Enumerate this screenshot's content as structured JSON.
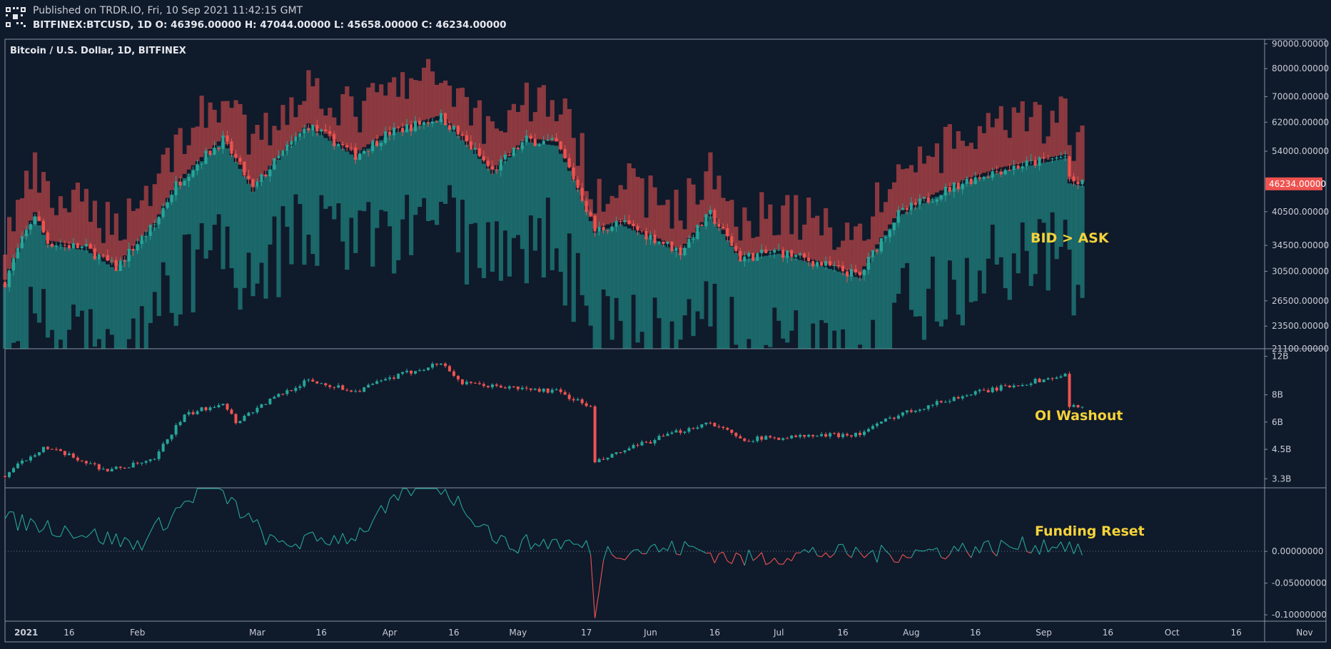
{
  "header": {
    "published": "Published on TRDR.IO, Fri, 10 Sep 2021 11:42:15 GMT",
    "ohlc": "BITFINEX:BTCUSD, 1D O: 46396.00000 H: 47044.00000 L: 45658.00000 C: 46234.00000"
  },
  "colors": {
    "background": "#0f1a2b",
    "up": "#26a69a",
    "down": "#ef5350",
    "annotation": "#f5d33a",
    "price_label_bg": "#ef5350"
  },
  "chart_data": [
    {
      "type": "candlestick",
      "title": "Bitcoin / U.S. Dollar, 1D, BITFINEX",
      "y_scale": "log",
      "ylim": [
        21100,
        92000
      ],
      "yticks": [
        "90000.00000",
        "80000.00000",
        "70000.00000",
        "62000.00000",
        "54000.00000",
        "46234.00000",
        "40500.00000",
        "34500.00000",
        "30500.00000",
        "26500.00000",
        "23500.00000",
        "21100.00000"
      ],
      "last_price": "46234.00000",
      "annotation": "BID > ASK",
      "close_keypoints": [
        [
          "2021-01-01",
          29000
        ],
        [
          "2021-01-08",
          40000
        ],
        [
          "2021-01-11",
          35000
        ],
        [
          "2021-01-20",
          34000
        ],
        [
          "2021-01-27",
          31000
        ],
        [
          "2021-02-05",
          38000
        ],
        [
          "2021-02-10",
          46000
        ],
        [
          "2021-02-21",
          57000
        ],
        [
          "2021-02-28",
          45000
        ],
        [
          "2021-03-13",
          61000
        ],
        [
          "2021-03-24",
          53000
        ],
        [
          "2021-04-01",
          59000
        ],
        [
          "2021-04-13",
          63500
        ],
        [
          "2021-04-25",
          49000
        ],
        [
          "2021-05-03",
          57000
        ],
        [
          "2021-05-10",
          56000
        ],
        [
          "2021-05-19",
          37000
        ],
        [
          "2021-05-25",
          38500
        ],
        [
          "2021-06-08",
          33500
        ],
        [
          "2021-06-15",
          40000
        ],
        [
          "2021-06-22",
          32500
        ],
        [
          "2021-07-01",
          33500
        ],
        [
          "2021-07-20",
          29800
        ],
        [
          "2021-07-29",
          40000
        ],
        [
          "2021-08-14",
          47000
        ],
        [
          "2021-08-22",
          49500
        ],
        [
          "2021-09-06",
          52700
        ],
        [
          "2021-09-07",
          46800
        ],
        [
          "2021-09-10",
          46234
        ]
      ]
    },
    {
      "type": "candlestick",
      "name": "Open Interest",
      "y_scale": "log",
      "ylim": [
        3000000000,
        13000000000
      ],
      "yticks": [
        "12B",
        "8B",
        "6B",
        "4.5B",
        "3.3B"
      ],
      "annotation": "OI Washout",
      "close_keypoints": [
        [
          "2021-01-01",
          3400000000
        ],
        [
          "2021-01-10",
          4600000000
        ],
        [
          "2021-01-25",
          3600000000
        ],
        [
          "2021-02-05",
          4000000000
        ],
        [
          "2021-02-12",
          6400000000
        ],
        [
          "2021-02-21",
          7400000000
        ],
        [
          "2021-02-24",
          6000000000
        ],
        [
          "2021-03-13",
          9300000000
        ],
        [
          "2021-03-24",
          8300000000
        ],
        [
          "2021-04-01",
          9500000000
        ],
        [
          "2021-04-13",
          11200000000
        ],
        [
          "2021-04-18",
          9000000000
        ],
        [
          "2021-05-03",
          8500000000
        ],
        [
          "2021-05-10",
          8300000000
        ],
        [
          "2021-05-18",
          7000000000
        ],
        [
          "2021-05-19",
          3900000000
        ],
        [
          "2021-06-15",
          6000000000
        ],
        [
          "2021-06-22",
          5000000000
        ],
        [
          "2021-07-20",
          5300000000
        ],
        [
          "2021-07-29",
          6500000000
        ],
        [
          "2021-08-14",
          8000000000
        ],
        [
          "2021-09-06",
          9800000000
        ],
        [
          "2021-09-07",
          7000000000
        ],
        [
          "2021-09-10",
          7200000000
        ]
      ]
    },
    {
      "type": "line",
      "name": "Funding Rate",
      "ylim": [
        -0.11,
        0.1
      ],
      "yticks": [
        "0.00000000",
        "-0.05000000",
        "-0.10000000"
      ],
      "zero_line": true,
      "annotation": "Funding Reset",
      "keypoints": [
        [
          "2021-01-01",
          0.05
        ],
        [
          "2021-01-15",
          0.035
        ],
        [
          "2021-02-01",
          0.01
        ],
        [
          "2021-02-18",
          0.11
        ],
        [
          "2021-03-05",
          0.01
        ],
        [
          "2021-03-24",
          0.025
        ],
        [
          "2021-04-10",
          0.12
        ],
        [
          "2021-04-28",
          0.01
        ],
        [
          "2021-05-10",
          0.015
        ],
        [
          "2021-05-18",
          0.005
        ],
        [
          "2021-05-19",
          -0.112
        ],
        [
          "2021-05-21",
          0.0
        ],
        [
          "2021-06-10",
          0.005
        ],
        [
          "2021-06-22",
          -0.013
        ],
        [
          "2021-07-10",
          -0.002
        ],
        [
          "2021-07-25",
          -0.005
        ],
        [
          "2021-08-10",
          0.002
        ],
        [
          "2021-09-06",
          0.012
        ],
        [
          "2021-09-09",
          -0.003
        ],
        [
          "2021-09-10",
          0.002
        ]
      ]
    }
  ],
  "x_axis": {
    "labels": [
      "2021",
      "16",
      "Feb",
      "Mar",
      "16",
      "Apr",
      "16",
      "May",
      "17",
      "Jun",
      "16",
      "Jul",
      "16",
      "Aug",
      "16",
      "Sep",
      "16",
      "Oct",
      "16",
      "Nov"
    ],
    "dates": [
      "2021-01-01",
      "2021-01-16",
      "2021-02-01",
      "2021-03-01",
      "2021-03-16",
      "2021-04-01",
      "2021-04-16",
      "2021-05-01",
      "2021-05-17",
      "2021-06-01",
      "2021-06-16",
      "2021-07-01",
      "2021-07-16",
      "2021-08-01",
      "2021-08-16",
      "2021-09-01",
      "2021-09-16",
      "2021-10-01",
      "2021-10-16",
      "2021-11-01"
    ]
  }
}
